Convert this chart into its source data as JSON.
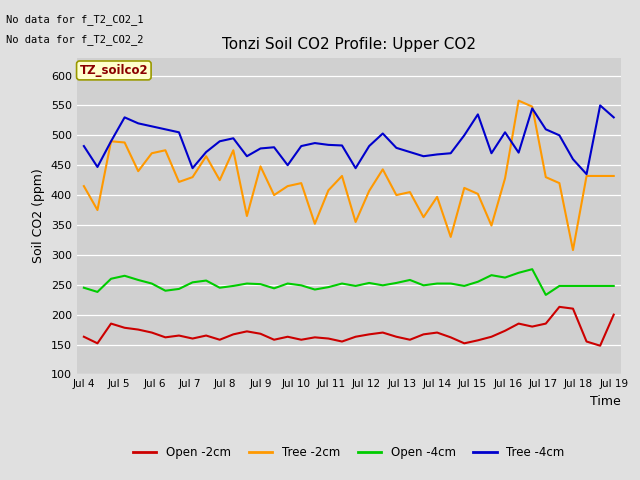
{
  "title": "Tonzi Soil CO2 Profile: Upper CO2",
  "ylabel": "Soil CO2 (ppm)",
  "xlabel": "Time",
  "ylim": [
    100,
    630
  ],
  "yticks": [
    100,
    150,
    200,
    250,
    300,
    350,
    400,
    450,
    500,
    550,
    600
  ],
  "no_data_text": [
    "No data for f_T2_CO2_1",
    "No data for f_T2_CO2_2"
  ],
  "source_label": "TZ_soilco2",
  "fig_bg_color": "#e0e0e0",
  "plot_bg_color": "#d0d0d0",
  "legend_entries": [
    "Open -2cm",
    "Tree -2cm",
    "Open -4cm",
    "Tree -4cm"
  ],
  "line_colors": [
    "#cc0000",
    "#ff9900",
    "#00cc00",
    "#0000cc"
  ],
  "x_labels": [
    "Jul 4",
    "Jul 5",
    "Jul 6",
    "Jul 7",
    "Jul 8",
    "Jul 9",
    "Jul 10",
    "Jul 11",
    "Jul 12",
    "Jul 13",
    "Jul 14",
    "Jul 15",
    "Jul 16",
    "Jul 17",
    "Jul 18",
    "Jul 19"
  ],
  "open_2cm": [
    163,
    152,
    185,
    178,
    175,
    170,
    162,
    165,
    160,
    165,
    158,
    167,
    172,
    168,
    158,
    163,
    158,
    162,
    160,
    155,
    163,
    167,
    170,
    163,
    158,
    167,
    170,
    162,
    152,
    157,
    163,
    173,
    185,
    180,
    185,
    213,
    210,
    155,
    148,
    200
  ],
  "tree_2cm": [
    415,
    375,
    490,
    488,
    440,
    470,
    475,
    422,
    430,
    465,
    425,
    475,
    365,
    448,
    400,
    415,
    420,
    352,
    408,
    432,
    355,
    407,
    443,
    400,
    405,
    363,
    397,
    330,
    412,
    402,
    349,
    428,
    558,
    548,
    430,
    420,
    308,
    432,
    432,
    432
  ],
  "open_4cm": [
    245,
    238,
    260,
    265,
    258,
    252,
    240,
    243,
    254,
    257,
    245,
    248,
    252,
    251,
    244,
    252,
    249,
    242,
    246,
    252,
    248,
    253,
    249,
    253,
    258,
    249,
    252,
    252,
    248,
    255,
    266,
    262,
    270,
    276,
    233,
    248,
    248,
    248,
    248,
    248
  ],
  "tree_4cm": [
    482,
    447,
    490,
    530,
    520,
    515,
    510,
    505,
    445,
    472,
    490,
    495,
    465,
    478,
    480,
    450,
    482,
    487,
    484,
    483,
    445,
    482,
    503,
    479,
    472,
    465,
    468,
    470,
    500,
    535,
    470,
    505,
    471,
    545,
    510,
    500,
    460,
    435,
    550,
    530
  ]
}
